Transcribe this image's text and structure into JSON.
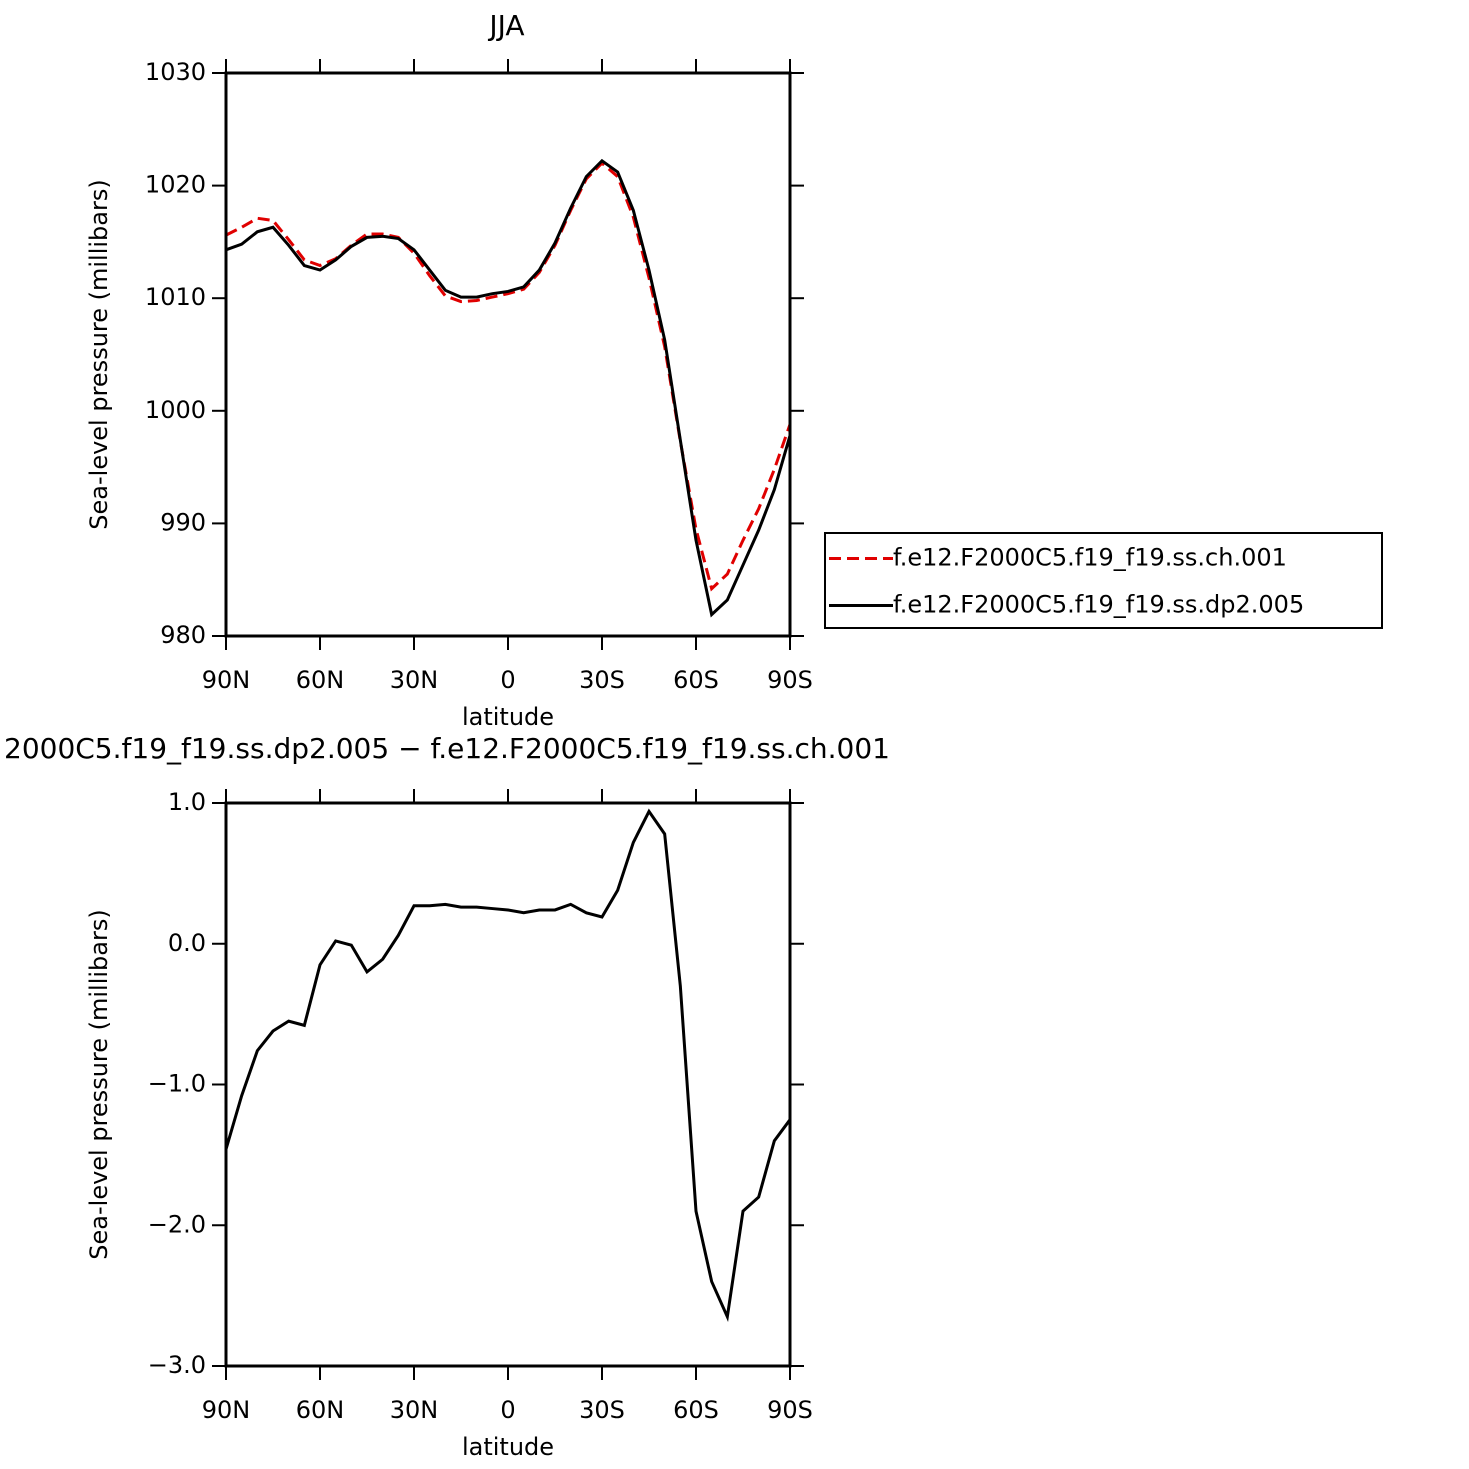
{
  "chart_data": [
    {
      "type": "line",
      "title": "JJA",
      "xlabel": "latitude",
      "ylabel": "Sea-level pressure (millibars)",
      "x": [
        90,
        85,
        80,
        75,
        70,
        65,
        60,
        55,
        50,
        45,
        40,
        35,
        30,
        25,
        20,
        15,
        10,
        5,
        0,
        -5,
        -10,
        -15,
        -20,
        -25,
        -30,
        -35,
        -40,
        -45,
        -50,
        -55,
        -60,
        -65,
        -70,
        -75,
        -80,
        -85,
        -90
      ],
      "xlim": [
        90,
        -90
      ],
      "xticks": [
        {
          "value": 90,
          "label": "90N"
        },
        {
          "value": 60,
          "label": "60N"
        },
        {
          "value": 30,
          "label": "30N"
        },
        0,
        {
          "value": -30,
          "label": "30S"
        },
        {
          "value": -60,
          "label": "60S"
        },
        {
          "value": -90,
          "label": "90S"
        }
      ],
      "ylim": [
        980,
        1030
      ],
      "yticks": [
        980,
        990,
        1000,
        1010,
        1020,
        1030
      ],
      "legend": "right",
      "series": [
        {
          "name": "f.e12.F2000C5.f19_f19.ss.ch.001",
          "color": "#e00000",
          "dash": "dashed",
          "values": [
            1015.6,
            1016.3,
            1017.1,
            1016.9,
            1015.2,
            1013.4,
            1012.9,
            1013.5,
            1014.7,
            1015.7,
            1015.7,
            1015.4,
            1014.0,
            1012.0,
            1010.2,
            1009.7,
            1009.8,
            1010.1,
            1010.4,
            1010.8,
            1012.3,
            1014.7,
            1017.8,
            1020.6,
            1022.0,
            1020.8,
            1017.2,
            1011.8,
            1005.7,
            997.3,
            989.5,
            984.2,
            985.5,
            988.5,
            991.3,
            994.8,
            998.8
          ]
        },
        {
          "name": "f.e12.F2000C5.f19_f19.ss.dp2.005",
          "color": "#000000",
          "dash": "solid",
          "values": [
            1014.3,
            1014.8,
            1015.9,
            1016.3,
            1014.7,
            1012.9,
            1012.5,
            1013.4,
            1014.6,
            1015.4,
            1015.5,
            1015.3,
            1014.3,
            1012.5,
            1010.7,
            1010.1,
            1010.1,
            1010.4,
            1010.6,
            1011.0,
            1012.5,
            1014.9,
            1018.0,
            1020.8,
            1022.2,
            1021.2,
            1017.8,
            1012.5,
            1006.3,
            997.4,
            988.5,
            981.9,
            983.2,
            986.3,
            989.4,
            993.0,
            997.8
          ]
        }
      ]
    },
    {
      "type": "line",
      "title": "2000C5.f19_f19.ss.dp2.005 − f.e12.F2000C5.f19_f19.ss.ch.001",
      "xlabel": "latitude",
      "ylabel": "Sea-level pressure (millibars)",
      "x": [
        90,
        85,
        80,
        75,
        70,
        65,
        60,
        55,
        50,
        45,
        40,
        35,
        30,
        25,
        20,
        15,
        10,
        5,
        0,
        -5,
        -10,
        -15,
        -20,
        -25,
        -30,
        -35,
        -40,
        -45,
        -50,
        -55,
        -60,
        -65,
        -70,
        -75,
        -80,
        -85,
        -90
      ],
      "xlim": [
        90,
        -90
      ],
      "xticks": [
        {
          "value": 90,
          "label": "90N"
        },
        {
          "value": 60,
          "label": "60N"
        },
        {
          "value": 30,
          "label": "30N"
        },
        0,
        {
          "value": -30,
          "label": "30S"
        },
        {
          "value": -60,
          "label": "60S"
        },
        {
          "value": -90,
          "label": "90S"
        }
      ],
      "ylim": [
        -3,
        1
      ],
      "yticks": [
        {
          "value": -3,
          "label": "−3.0"
        },
        {
          "value": -2,
          "label": "−2.0"
        },
        {
          "value": -1,
          "label": "−1.0"
        },
        {
          "value": 0,
          "label": "0.0"
        },
        {
          "value": 1,
          "label": "1.0"
        }
      ],
      "series": [
        {
          "color": "#000000",
          "dash": "solid",
          "values": [
            -1.46,
            -1.08,
            -0.76,
            -0.62,
            -0.55,
            -0.58,
            -0.15,
            0.02,
            -0.01,
            -0.2,
            -0.11,
            0.06,
            0.27,
            0.27,
            0.28,
            0.26,
            0.26,
            0.25,
            0.24,
            0.22,
            0.24,
            0.24,
            0.28,
            0.22,
            0.19,
            0.38,
            0.72,
            0.94,
            0.78,
            -0.3,
            -1.9,
            -2.4,
            -2.65,
            -1.9,
            -1.8,
            -1.4,
            -1.25
          ]
        }
      ]
    }
  ]
}
